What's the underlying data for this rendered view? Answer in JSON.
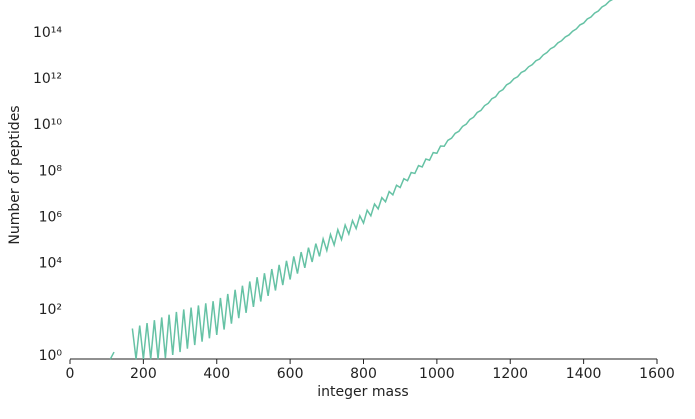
{
  "chart_data": {
    "type": "line",
    "xlabel": "integer mass",
    "ylabel": "Number of peptides",
    "xlim": [
      0,
      1600
    ],
    "xticks": [
      0,
      200,
      400,
      600,
      800,
      1000,
      1200,
      1400,
      1600
    ],
    "ylim": [
      1,
      3600000000000000.0
    ],
    "log_y": true,
    "yticks": [
      {
        "value": 1,
        "label": "10⁰"
      },
      {
        "value": 100,
        "label": "10²"
      },
      {
        "value": 10000,
        "label": "10⁴"
      },
      {
        "value": 1000000,
        "label": "10⁶"
      },
      {
        "value": 100000000,
        "label": "10⁸"
      },
      {
        "value": 10000000000,
        "label": "10¹⁰"
      },
      {
        "value": 1000000000000,
        "label": "10¹²"
      },
      {
        "value": 100000000000000,
        "label": "10¹⁴"
      }
    ],
    "x": [
      110,
      120,
      130,
      140,
      150,
      160,
      170,
      180,
      190,
      200,
      210,
      220,
      230,
      240,
      250,
      260,
      270,
      280,
      290,
      300,
      310,
      320,
      330,
      340,
      350,
      360,
      370,
      380,
      390,
      400,
      410,
      420,
      430,
      440,
      450,
      460,
      470,
      480,
      490,
      500,
      510,
      520,
      530,
      540,
      550,
      560,
      570,
      580,
      590,
      600,
      610,
      620,
      630,
      640,
      650,
      660,
      670,
      680,
      690,
      700,
      710,
      720,
      730,
      740,
      750,
      760,
      770,
      780,
      790,
      800,
      810,
      820,
      830,
      840,
      850,
      860,
      870,
      880,
      890,
      900,
      910,
      920,
      930,
      940,
      950,
      960,
      970,
      980,
      990,
      1000,
      1010,
      1020,
      1030,
      1040,
      1050,
      1060,
      1070,
      1080,
      1090,
      1100,
      1110,
      1120,
      1130,
      1140,
      1150,
      1160,
      1170,
      1180,
      1190,
      1200,
      1210,
      1220,
      1230,
      1240,
      1250,
      1260,
      1270,
      1280,
      1290,
      1300,
      1310,
      1320,
      1330,
      1340,
      1350,
      1360,
      1370,
      1380,
      1390,
      1400,
      1410,
      1420,
      1430,
      1440,
      1450,
      1460,
      1470,
      1480
    ],
    "series": [
      {
        "color": "#66c2a5",
        "values": [
          1,
          2,
          null,
          null,
          null,
          null,
          21,
          1,
          28,
          1,
          36,
          1,
          48,
          1,
          63,
          1.1,
          83,
          1.5,
          110,
          2,
          140,
          2.8,
          170,
          4,
          210,
          5.6,
          260,
          7.9,
          320,
          11,
          440,
          19,
          660,
          34,
          1000,
          59,
          1500,
          100,
          2300,
          180,
          3500,
          310,
          5200,
          540,
          7900,
          930,
          12000,
          1600,
          18000,
          2800,
          28000,
          5000,
          43000,
          8900,
          67000,
          16000,
          100000.0,
          28000,
          160000.0,
          50000,
          250000.0,
          87000,
          400000.0,
          150000.0,
          640000.0,
          260000.0,
          1000000.0,
          450000.0,
          1600000.0,
          780000.0,
          2800000.0,
          1600000.0,
          5200000.0,
          3200000.0,
          9800000.0,
          6500000.0,
          18000000.0,
          13000000.0,
          34000000.0,
          27000000.0,
          65000000.0,
          53000000.0,
          120000000.0,
          110000000.0,
          240000000.0,
          210000000.0,
          460000000.0,
          410000000.0,
          880000000.0,
          820000000.0,
          1700000000.0,
          1660000000.0,
          3000000000.0,
          3700000000.0,
          6000000000.0,
          7400000000.0,
          12000000000.0,
          15000000000.0,
          24000000000.0,
          30000000000.0,
          48000000000.0,
          59000000000.0,
          95000000000.0,
          120000000000.0,
          190000000000.0,
          230000000000.0,
          380000000000.0,
          470000000000.0,
          760000000000.0,
          930000000000.0,
          1400000000000.0,
          1700000000000.0,
          2600000000000.0,
          3100000000000.0,
          4600000000000.0,
          5700000000000.0,
          8400000000000.0,
          10000000000000.0,
          15000000000000.0,
          19000000000000.0,
          28000000000000.0,
          34000000000000.0,
          50000000000000.0,
          62000000000000.0,
          90000000000000.0,
          110000000000000.0,
          160000000000000.0,
          200000000000000.0,
          300000000000000.0,
          360000000000000.0,
          540000000000000.0,
          660000000000000.0,
          970000000000000.0,
          1200000000000000.0,
          1800000000000000.0,
          2200000000000000.0,
          3200000000000000.0,
          3900000000000000.0
        ]
      }
    ]
  }
}
